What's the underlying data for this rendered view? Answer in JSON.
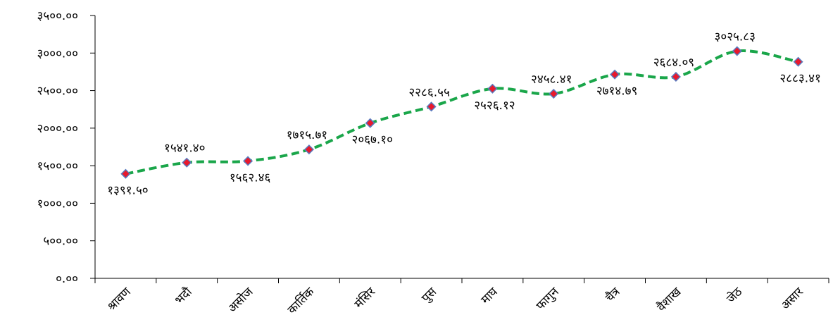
{
  "chart_data": {
    "type": "line",
    "title": "",
    "xlabel": "",
    "ylabel": "",
    "ylim": [
      0,
      3500
    ],
    "y_ticks": [
      0,
      500,
      1000,
      1500,
      2000,
      2500,
      3000,
      3500
    ],
    "y_tick_labels": [
      "०.००",
      "५००.००",
      "१०००.००",
      "१५००.००",
      "२०००.००",
      "२५००.००",
      "३०००.००",
      "३५००.००"
    ],
    "grid": false,
    "legend": "none",
    "categories": [
      "श्रावण",
      "भदौ",
      "असोज",
      "कार्तिक",
      "मंसिर",
      "पुस",
      "माघ",
      "फागुन",
      "चैत्र",
      "वैशाख",
      "जेठ",
      "असार"
    ],
    "series": [
      {
        "values": [
          1391.5,
          1541.4,
          1562.46,
          1715.71,
          2067.1,
          2286.55,
          2526.12,
          2458.41,
          2714.79,
          2684.09,
          3025.83,
          2883.41
        ],
        "data_labels": [
          "१३९१.५०",
          "१५४१.४०",
          "१५६२.४६",
          "१७१५.७१",
          "२०६७.१०",
          "२२८६.५५",
          "२५२६.१२",
          "२४५८.४१",
          "२७१४.७९",
          "२६८४.०९",
          "३०२५.८३",
          "२८८३.४१"
        ],
        "label_positions": [
          "below",
          "above",
          "below",
          "above",
          "below",
          "above",
          "below",
          "above",
          "below",
          "above",
          "above",
          "below"
        ]
      }
    ],
    "colors": {
      "line": "#1aa64a",
      "marker_fill": "#e8192c",
      "marker_stroke": "#5a7bbf",
      "axis": "#000000"
    },
    "line_style": "dashed-smooth",
    "marker": "diamond"
  }
}
